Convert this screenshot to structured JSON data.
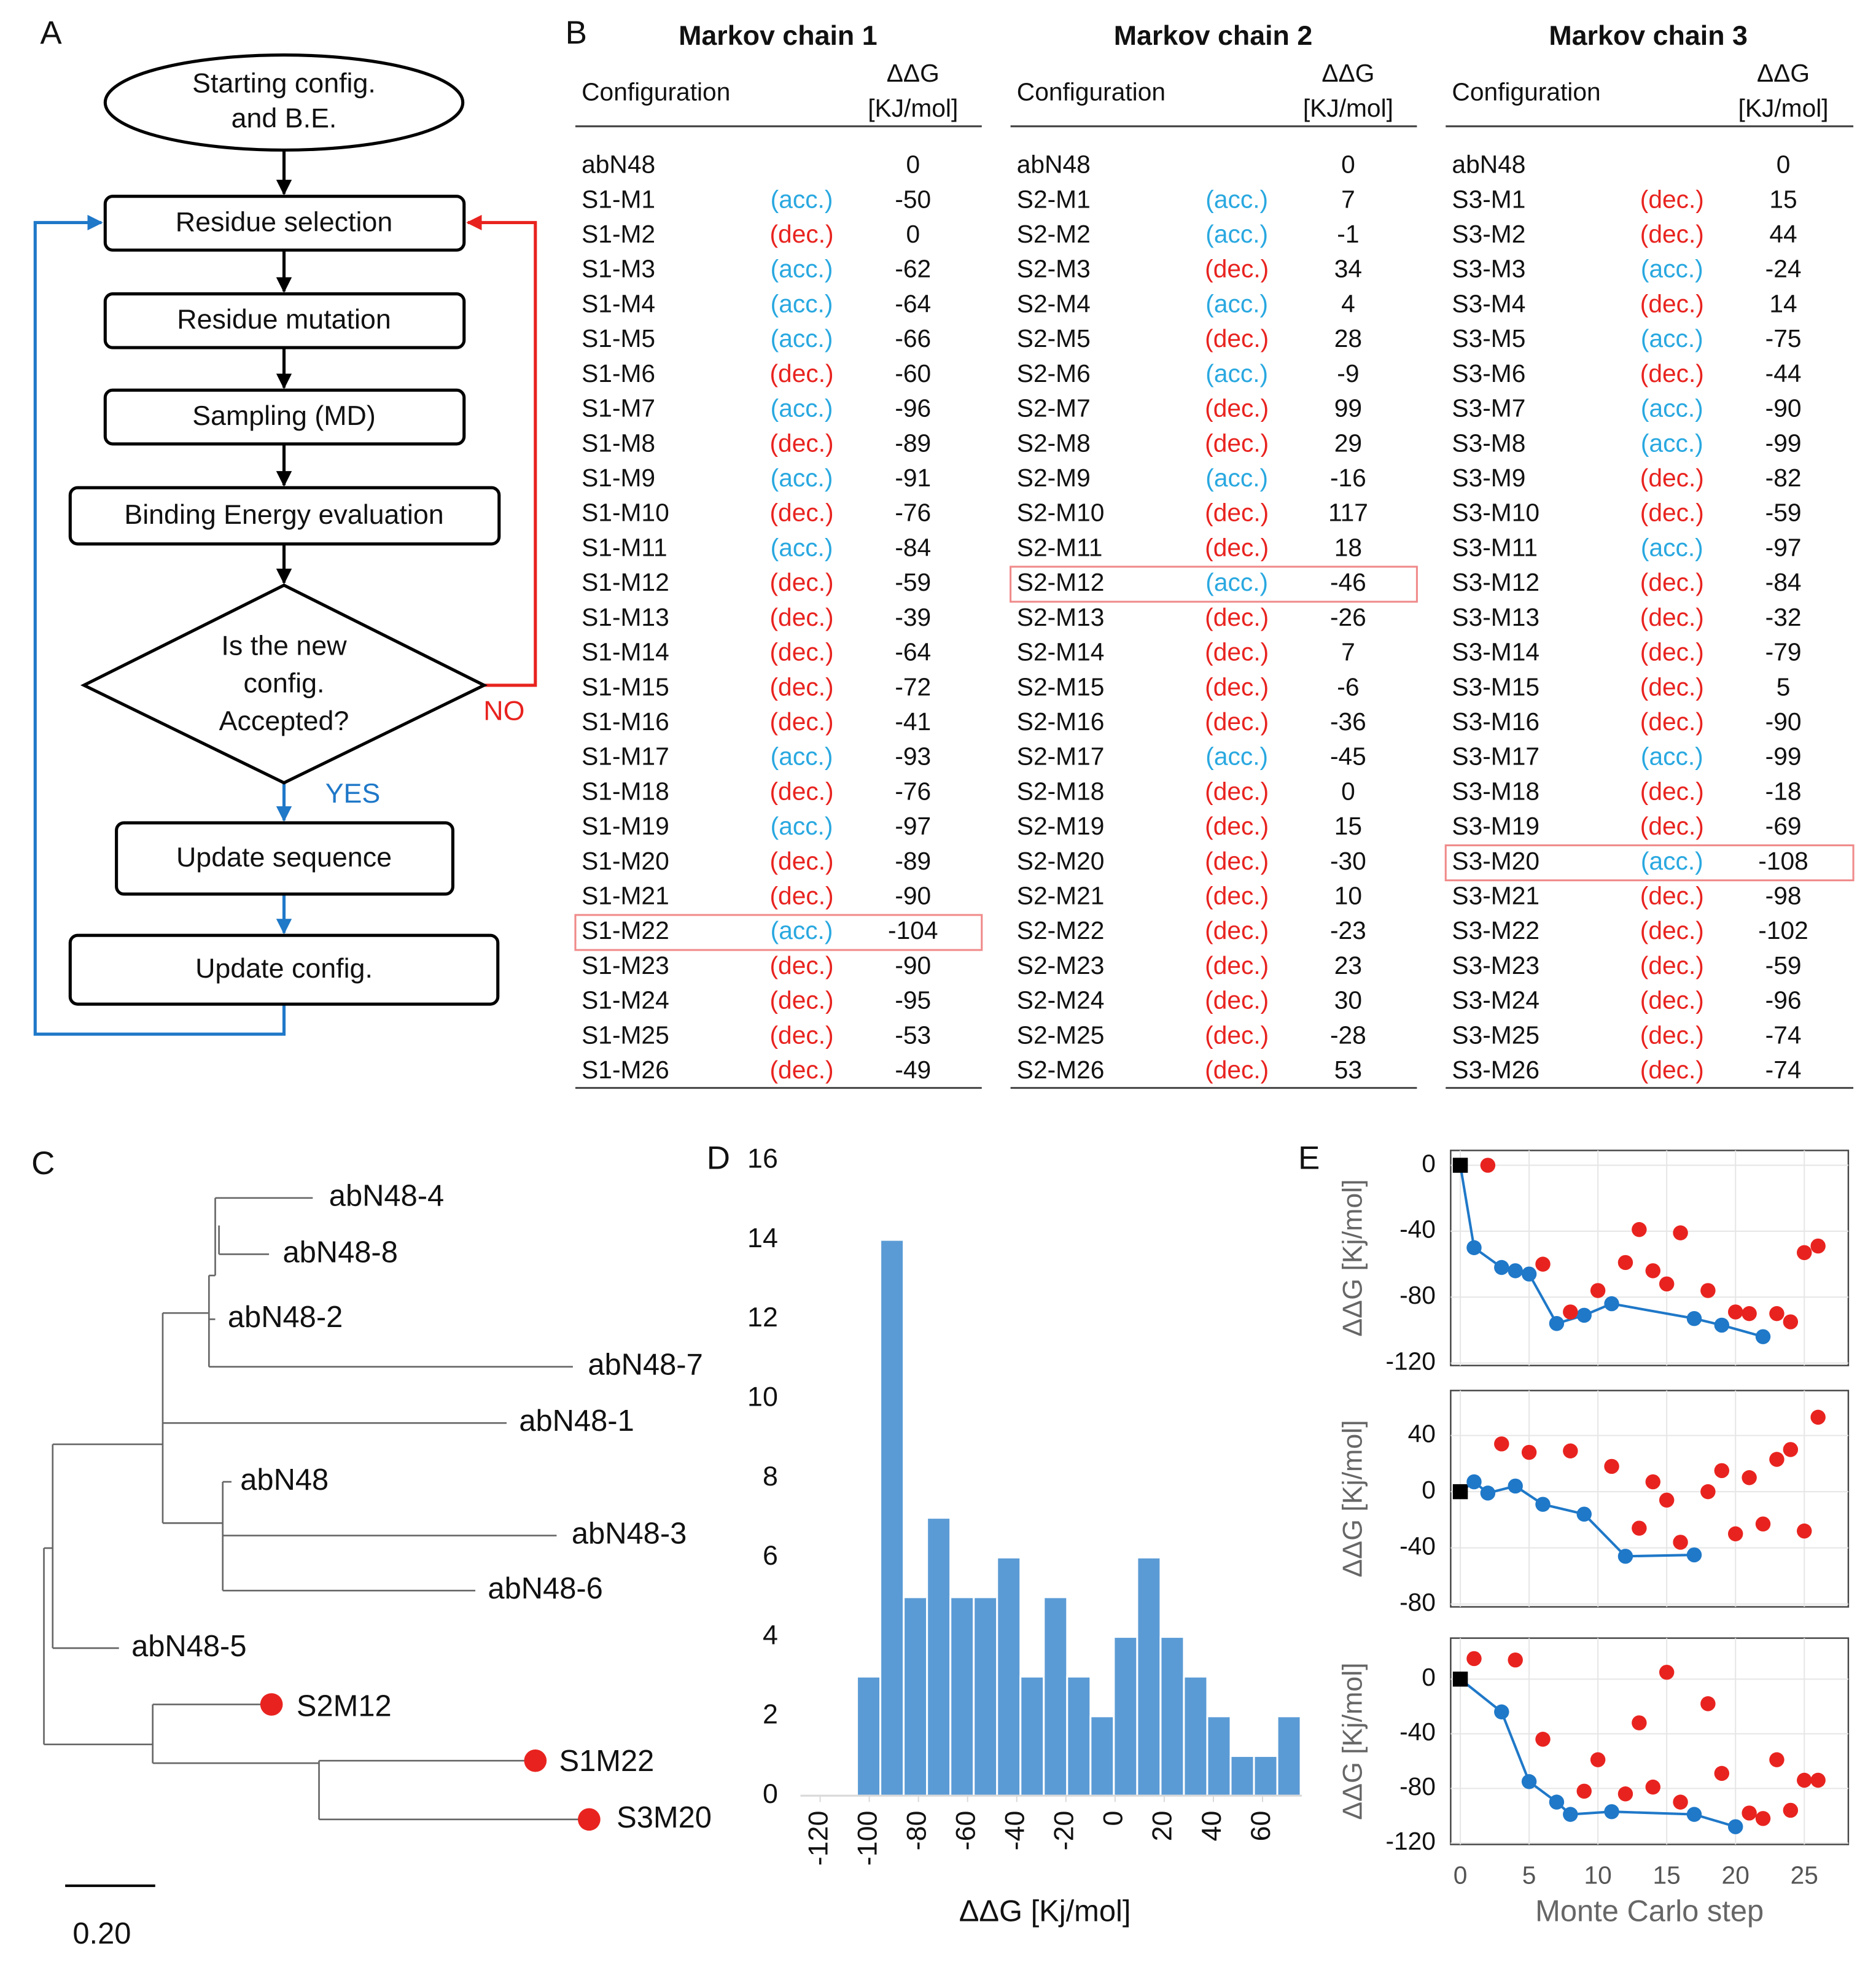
{
  "panel_labels": [
    "A",
    "B",
    "C",
    "D",
    "E"
  ],
  "flowchart": {
    "nodes": [
      {
        "lines": [
          "Starting config.",
          "and B.E."
        ]
      },
      {
        "lines": [
          "Residue selection"
        ]
      },
      {
        "lines": [
          "Residue mutation"
        ]
      },
      {
        "lines": [
          "Sampling (MD)"
        ]
      },
      {
        "lines": [
          "Binding Energy evaluation"
        ]
      },
      {
        "lines": [
          "Is the new",
          "config.",
          "Accepted?"
        ]
      },
      {
        "lines": [
          "Update sequence"
        ]
      },
      {
        "lines": [
          "Update config."
        ]
      }
    ],
    "no": "NO",
    "yes": "YES"
  },
  "tables": {
    "status_text": [
      "(acc.)",
      "(dec.)"
    ],
    "status_colors": [
      "#29a8e0",
      "#e8231f"
    ],
    "highlight_color": "#f08a8a",
    "chains": [
      {
        "title": "Markov chain 1",
        "header": [
          "Configuration",
          "ΔΔG",
          "[KJ/mol]"
        ],
        "rows": [
          {
            "config": "abN48",
            "value": 0
          },
          {
            "config": "S1-M1",
            "accepted": true,
            "value": -50
          },
          {
            "config": "S1-M2",
            "accepted": false,
            "value": 0
          },
          {
            "config": "S1-M3",
            "accepted": true,
            "value": -62
          },
          {
            "config": "S1-M4",
            "accepted": true,
            "value": -64
          },
          {
            "config": "S1-M5",
            "accepted": true,
            "value": -66
          },
          {
            "config": "S1-M6",
            "accepted": false,
            "value": -60
          },
          {
            "config": "S1-M7",
            "accepted": true,
            "value": -96
          },
          {
            "config": "S1-M8",
            "accepted": false,
            "value": -89
          },
          {
            "config": "S1-M9",
            "accepted": true,
            "value": -91
          },
          {
            "config": "S1-M10",
            "accepted": false,
            "value": -76
          },
          {
            "config": "S1-M11",
            "accepted": true,
            "value": -84
          },
          {
            "config": "S1-M12",
            "accepted": false,
            "value": -59
          },
          {
            "config": "S1-M13",
            "accepted": false,
            "value": -39
          },
          {
            "config": "S1-M14",
            "accepted": false,
            "value": -64
          },
          {
            "config": "S1-M15",
            "accepted": false,
            "value": -72
          },
          {
            "config": "S1-M16",
            "accepted": false,
            "value": -41
          },
          {
            "config": "S1-M17",
            "accepted": true,
            "value": -93
          },
          {
            "config": "S1-M18",
            "accepted": false,
            "value": -76
          },
          {
            "config": "S1-M19",
            "accepted": true,
            "value": -97
          },
          {
            "config": "S1-M20",
            "accepted": false,
            "value": -89
          },
          {
            "config": "S1-M21",
            "accepted": false,
            "value": -90
          },
          {
            "config": "S1-M22",
            "accepted": true,
            "value": -104,
            "highlight": true
          },
          {
            "config": "S1-M23",
            "accepted": false,
            "value": -90
          },
          {
            "config": "S1-M24",
            "accepted": false,
            "value": -95
          },
          {
            "config": "S1-M25",
            "accepted": false,
            "value": -53
          },
          {
            "config": "S1-M26",
            "accepted": false,
            "value": -49
          }
        ]
      },
      {
        "title": "Markov chain 2",
        "header": [
          "Configuration",
          "ΔΔG",
          "[KJ/mol]"
        ],
        "rows": [
          {
            "config": "abN48",
            "value": 0
          },
          {
            "config": "S2-M1",
            "accepted": true,
            "value": 7
          },
          {
            "config": "S2-M2",
            "accepted": true,
            "value": -1
          },
          {
            "config": "S2-M3",
            "accepted": false,
            "value": 34
          },
          {
            "config": "S2-M4",
            "accepted": true,
            "value": 4
          },
          {
            "config": "S2-M5",
            "accepted": false,
            "value": 28
          },
          {
            "config": "S2-M6",
            "accepted": true,
            "value": -9
          },
          {
            "config": "S2-M7",
            "accepted": false,
            "value": 99
          },
          {
            "config": "S2-M8",
            "accepted": false,
            "value": 29
          },
          {
            "config": "S2-M9",
            "accepted": true,
            "value": -16
          },
          {
            "config": "S2-M10",
            "accepted": false,
            "value": 117
          },
          {
            "config": "S2-M11",
            "accepted": false,
            "value": 18
          },
          {
            "config": "S2-M12",
            "accepted": true,
            "value": -46,
            "highlight": true
          },
          {
            "config": "S2-M13",
            "accepted": false,
            "value": -26
          },
          {
            "config": "S2-M14",
            "accepted": false,
            "value": 7
          },
          {
            "config": "S2-M15",
            "accepted": false,
            "value": -6
          },
          {
            "config": "S2-M16",
            "accepted": false,
            "value": -36
          },
          {
            "config": "S2-M17",
            "accepted": true,
            "value": -45
          },
          {
            "config": "S2-M18",
            "accepted": false,
            "value": 0
          },
          {
            "config": "S2-M19",
            "accepted": false,
            "value": 15
          },
          {
            "config": "S2-M20",
            "accepted": false,
            "value": -30
          },
          {
            "config": "S2-M21",
            "accepted": false,
            "value": 10
          },
          {
            "config": "S2-M22",
            "accepted": false,
            "value": -23
          },
          {
            "config": "S2-M23",
            "accepted": false,
            "value": 23
          },
          {
            "config": "S2-M24",
            "accepted": false,
            "value": 30
          },
          {
            "config": "S2-M25",
            "accepted": false,
            "value": -28
          },
          {
            "config": "S2-M26",
            "accepted": false,
            "value": 53
          }
        ]
      },
      {
        "title": "Markov chain 3",
        "header": [
          "Configuration",
          "ΔΔG",
          "[KJ/mol]"
        ],
        "rows": [
          {
            "config": "abN48",
            "value": 0
          },
          {
            "config": "S3-M1",
            "accepted": false,
            "value": 15
          },
          {
            "config": "S3-M2",
            "accepted": false,
            "value": 44
          },
          {
            "config": "S3-M3",
            "accepted": true,
            "value": -24
          },
          {
            "config": "S3-M4",
            "accepted": false,
            "value": 14
          },
          {
            "config": "S3-M5",
            "accepted": true,
            "value": -75
          },
          {
            "config": "S3-M6",
            "accepted": false,
            "value": -44
          },
          {
            "config": "S3-M7",
            "accepted": true,
            "value": -90
          },
          {
            "config": "S3-M8",
            "accepted": true,
            "value": -99
          },
          {
            "config": "S3-M9",
            "accepted": false,
            "value": -82
          },
          {
            "config": "S3-M10",
            "accepted": false,
            "value": -59
          },
          {
            "config": "S3-M11",
            "accepted": true,
            "value": -97
          },
          {
            "config": "S3-M12",
            "accepted": false,
            "value": -84
          },
          {
            "config": "S3-M13",
            "accepted": false,
            "value": -32
          },
          {
            "config": "S3-M14",
            "accepted": false,
            "value": -79
          },
          {
            "config": "S3-M15",
            "accepted": false,
            "value": 5
          },
          {
            "config": "S3-M16",
            "accepted": false,
            "value": -90
          },
          {
            "config": "S3-M17",
            "accepted": true,
            "value": -99
          },
          {
            "config": "S3-M18",
            "accepted": false,
            "value": -18
          },
          {
            "config": "S3-M19",
            "accepted": false,
            "value": -69
          },
          {
            "config": "S3-M20",
            "accepted": true,
            "value": -108,
            "highlight": true
          },
          {
            "config": "S3-M21",
            "accepted": false,
            "value": -98
          },
          {
            "config": "S3-M22",
            "accepted": false,
            "value": -102
          },
          {
            "config": "S3-M23",
            "accepted": false,
            "value": -59
          },
          {
            "config": "S3-M24",
            "accepted": false,
            "value": -96
          },
          {
            "config": "S3-M25",
            "accepted": false,
            "value": -74
          },
          {
            "config": "S3-M26",
            "accepted": false,
            "value": -74
          }
        ]
      }
    ]
  },
  "tree": {
    "leaves": [
      "abN48-4",
      "abN48-8",
      "abN48-2",
      "abN48-7",
      "abN48-1",
      "abN48",
      "abN48-3",
      "abN48-6",
      "abN48-5",
      "S2M12",
      "S1M22",
      "S3M20"
    ],
    "scale": "0.20"
  },
  "chart_data": [
    {
      "type": "histogram",
      "bins": [
        -105,
        -95.5,
        -86,
        -76.5,
        -67,
        -57.5,
        -48,
        -38.5,
        -29,
        -19.5,
        -10,
        -0.5,
        9,
        18.5,
        28,
        37.5,
        47,
        56.5,
        66,
        75.5
      ],
      "values": [
        3,
        14,
        5,
        7,
        5,
        5,
        6,
        3,
        5,
        3,
        2,
        4,
        6,
        4,
        3,
        2,
        1,
        1,
        2
      ],
      "color": "#5b9bd5",
      "xlim": [
        -128,
        76
      ],
      "ylim": [
        0,
        16
      ],
      "xticks": [
        -120,
        -100,
        -80,
        -60,
        -40,
        -20,
        0,
        20,
        40,
        60
      ],
      "yticks": [
        0,
        2,
        4,
        6,
        8,
        10,
        12,
        14,
        16
      ],
      "xlabel": "ΔΔG [Kj/mol]"
    },
    {
      "type": "scatter",
      "ylabel": "ΔΔG [Kj/mol]",
      "xlim": [
        -0.7,
        28.2
      ],
      "ylim": [
        -121.5,
        9
      ],
      "xticks": [
        0,
        5,
        10,
        15,
        20,
        25
      ],
      "show_xtick_labels": false,
      "yticks": [
        -120,
        -80,
        -40,
        0
      ],
      "grid": true,
      "start_color": "#000000",
      "series": [
        {
          "color": "#1f78c8",
          "line": true,
          "x": [
            0,
            1,
            3,
            4,
            5,
            7,
            9,
            11,
            17,
            19,
            22
          ],
          "values": [
            0,
            -50,
            -62,
            -64,
            -66,
            -96,
            -91,
            -84,
            -93,
            -97,
            -104
          ]
        },
        {
          "color": "#e8231f",
          "x": [
            2,
            6,
            8,
            10,
            12,
            13,
            14,
            15,
            16,
            18,
            20,
            21,
            23,
            24,
            25,
            26
          ],
          "values": [
            0,
            -60,
            -89,
            -76,
            -59,
            -39,
            -64,
            -72,
            -41,
            -76,
            -89,
            -90,
            -90,
            -95,
            -53,
            -49
          ]
        }
      ]
    },
    {
      "type": "scatter",
      "ylabel": "ΔΔG [Kj/mol]",
      "xlim": [
        -0.7,
        28.2
      ],
      "ylim": [
        -82,
        72
      ],
      "xticks": [
        0,
        5,
        10,
        15,
        20,
        25
      ],
      "show_xtick_labels": false,
      "yticks": [
        -80,
        -40,
        0,
        40
      ],
      "grid": true,
      "start_color": "#000000",
      "series": [
        {
          "color": "#1f78c8",
          "line": true,
          "x": [
            0,
            1,
            2,
            4,
            6,
            9,
            12,
            17
          ],
          "values": [
            0,
            7,
            -1,
            4,
            -9,
            -16,
            -46,
            -45
          ]
        },
        {
          "color": "#e8231f",
          "x": [
            3,
            5,
            8,
            11,
            13,
            14,
            15,
            16,
            18,
            19,
            20,
            21,
            22,
            23,
            24,
            25,
            26
          ],
          "values": [
            34,
            28,
            29,
            18,
            -26,
            7,
            -6,
            -36,
            0,
            15,
            -30,
            10,
            -23,
            23,
            30,
            -28,
            53
          ]
        }
      ]
    },
    {
      "type": "scatter",
      "ylabel": "ΔΔG [Kj/mol]",
      "xlabel": "Monte Carlo step",
      "xlim": [
        -0.7,
        28.2
      ],
      "ylim": [
        -121,
        30
      ],
      "xticks": [
        0,
        5,
        10,
        15,
        20,
        25
      ],
      "show_xtick_labels": true,
      "yticks": [
        -120,
        -80,
        -40,
        0
      ],
      "grid": true,
      "start_color": "#000000",
      "series": [
        {
          "color": "#1f78c8",
          "line": true,
          "x": [
            0,
            3,
            5,
            7,
            8,
            11,
            17,
            20
          ],
          "values": [
            0,
            -24,
            -75,
            -90,
            -99,
            -97,
            -99,
            -108
          ]
        },
        {
          "color": "#e8231f",
          "x": [
            1,
            4,
            6,
            9,
            10,
            12,
            13,
            14,
            15,
            16,
            18,
            19,
            21,
            22,
            23,
            24,
            25,
            26
          ],
          "values": [
            15,
            14,
            -44,
            -82,
            -59,
            -84,
            -32,
            -79,
            5,
            -90,
            -18,
            -69,
            -98,
            -102,
            -59,
            -96,
            -74,
            -74
          ]
        }
      ]
    }
  ]
}
